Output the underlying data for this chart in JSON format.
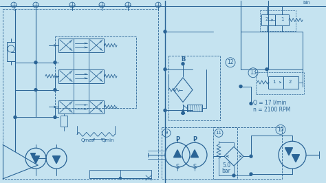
{
  "bg_light": "#c5e3f0",
  "line_color": "#2a6496",
  "line_color_dark": "#1a4a70",
  "annotations": {
    "Q": "Q = 17 l/min",
    "n": "n = 2100 RPM",
    "qmax": "Qmax",
    "qmin": "Qmin"
  }
}
